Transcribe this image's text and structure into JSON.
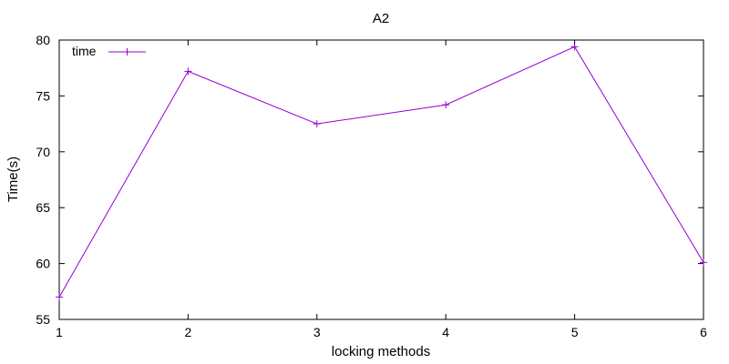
{
  "chart_data": {
    "type": "line",
    "title": "A2",
    "xlabel": "locking methods",
    "ylabel": "Time(s)",
    "xlim": [
      1,
      6
    ],
    "ylim": [
      55,
      80
    ],
    "xticks": [
      1,
      2,
      3,
      4,
      5,
      6
    ],
    "yticks": [
      55,
      60,
      65,
      70,
      75,
      80
    ],
    "grid": false,
    "legend_position": "top-left",
    "series": [
      {
        "name": "time",
        "color": "#9400d3",
        "marker": "plus",
        "x": [
          1,
          2,
          3,
          4,
          5,
          6
        ],
        "y": [
          57.0,
          77.2,
          72.5,
          74.2,
          79.4,
          60.1
        ]
      }
    ]
  }
}
